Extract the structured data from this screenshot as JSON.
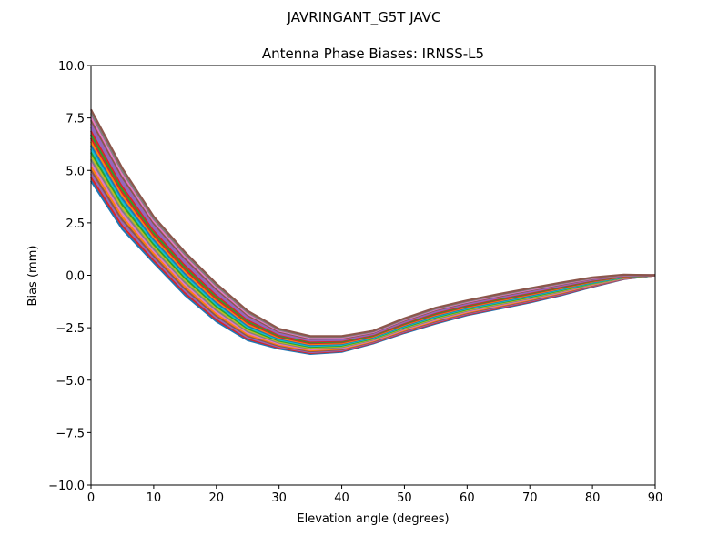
{
  "chart_data": {
    "type": "line",
    "suptitle": "JAVRINGANT_G5T  JAVC",
    "title": "Antenna Phase Biases: IRNSS-L5",
    "xlabel": "Elevation angle (degrees)",
    "ylabel": "Bias (mm)",
    "xlim": [
      0,
      90
    ],
    "ylim": [
      -10,
      10
    ],
    "grid": false,
    "xticks": [
      "0",
      "10",
      "20",
      "30",
      "40",
      "50",
      "60",
      "70",
      "80",
      "90"
    ],
    "yticks": [
      "10.0",
      "7.5",
      "5.0",
      "2.5",
      "0.0",
      "−2.5",
      "−5.0",
      "−7.5",
      "−10.0"
    ],
    "x": [
      0,
      5,
      10,
      15,
      20,
      25,
      30,
      35,
      40,
      45,
      50,
      55,
      60,
      65,
      70,
      75,
      80,
      85,
      90
    ],
    "colors": [
      "#1f77b4",
      "#ff7f0e",
      "#2ca02c",
      "#d62728",
      "#9467bd",
      "#8c564b",
      "#e377c2",
      "#7f7f7f",
      "#bcbd22",
      "#17becf"
    ],
    "series": [
      {
        "values": [
          4.5,
          2.2,
          0.6,
          -0.95,
          -2.2,
          -3.1,
          -3.5,
          -3.75,
          -3.65,
          -3.25,
          -2.75,
          -2.3,
          -1.9,
          -1.6,
          -1.3,
          -0.95,
          -0.55,
          -0.18,
          0
        ]
      },
      {
        "values": [
          5.18,
          2.78,
          1.04,
          -0.54,
          -1.84,
          -2.82,
          -3.31,
          -3.58,
          -3.5,
          -3.13,
          -2.61,
          -2.15,
          -1.76,
          -1.46,
          -1.16,
          -0.83,
          -0.46,
          -0.14,
          0
        ]
      },
      {
        "values": [
          5.86,
          3.36,
          1.48,
          -0.13,
          -1.48,
          -2.54,
          -3.12,
          -3.41,
          -3.35,
          -3.01,
          -2.47,
          -2.0,
          -1.62,
          -1.32,
          -1.03,
          -0.71,
          -0.37,
          -0.1,
          0
        ]
      },
      {
        "values": [
          6.54,
          3.94,
          1.92,
          0.28,
          -1.12,
          -2.26,
          -2.93,
          -3.24,
          -3.2,
          -2.89,
          -2.33,
          -1.85,
          -1.48,
          -1.18,
          -0.89,
          -0.59,
          -0.28,
          -0.05,
          0
        ]
      },
      {
        "values": [
          7.22,
          4.52,
          2.36,
          0.69,
          -0.76,
          -1.98,
          -2.74,
          -3.07,
          -3.05,
          -2.77,
          -2.19,
          -1.7,
          -1.34,
          -1.04,
          -0.76,
          -0.47,
          -0.19,
          -0.01,
          0
        ]
      },
      {
        "values": [
          7.9,
          5.1,
          2.8,
          1.1,
          -0.4,
          -1.7,
          -2.55,
          -2.9,
          -2.9,
          -2.65,
          -2.05,
          -1.55,
          -1.2,
          -0.9,
          -0.62,
          -0.35,
          -0.1,
          0.03,
          0
        ]
      }
    ]
  }
}
